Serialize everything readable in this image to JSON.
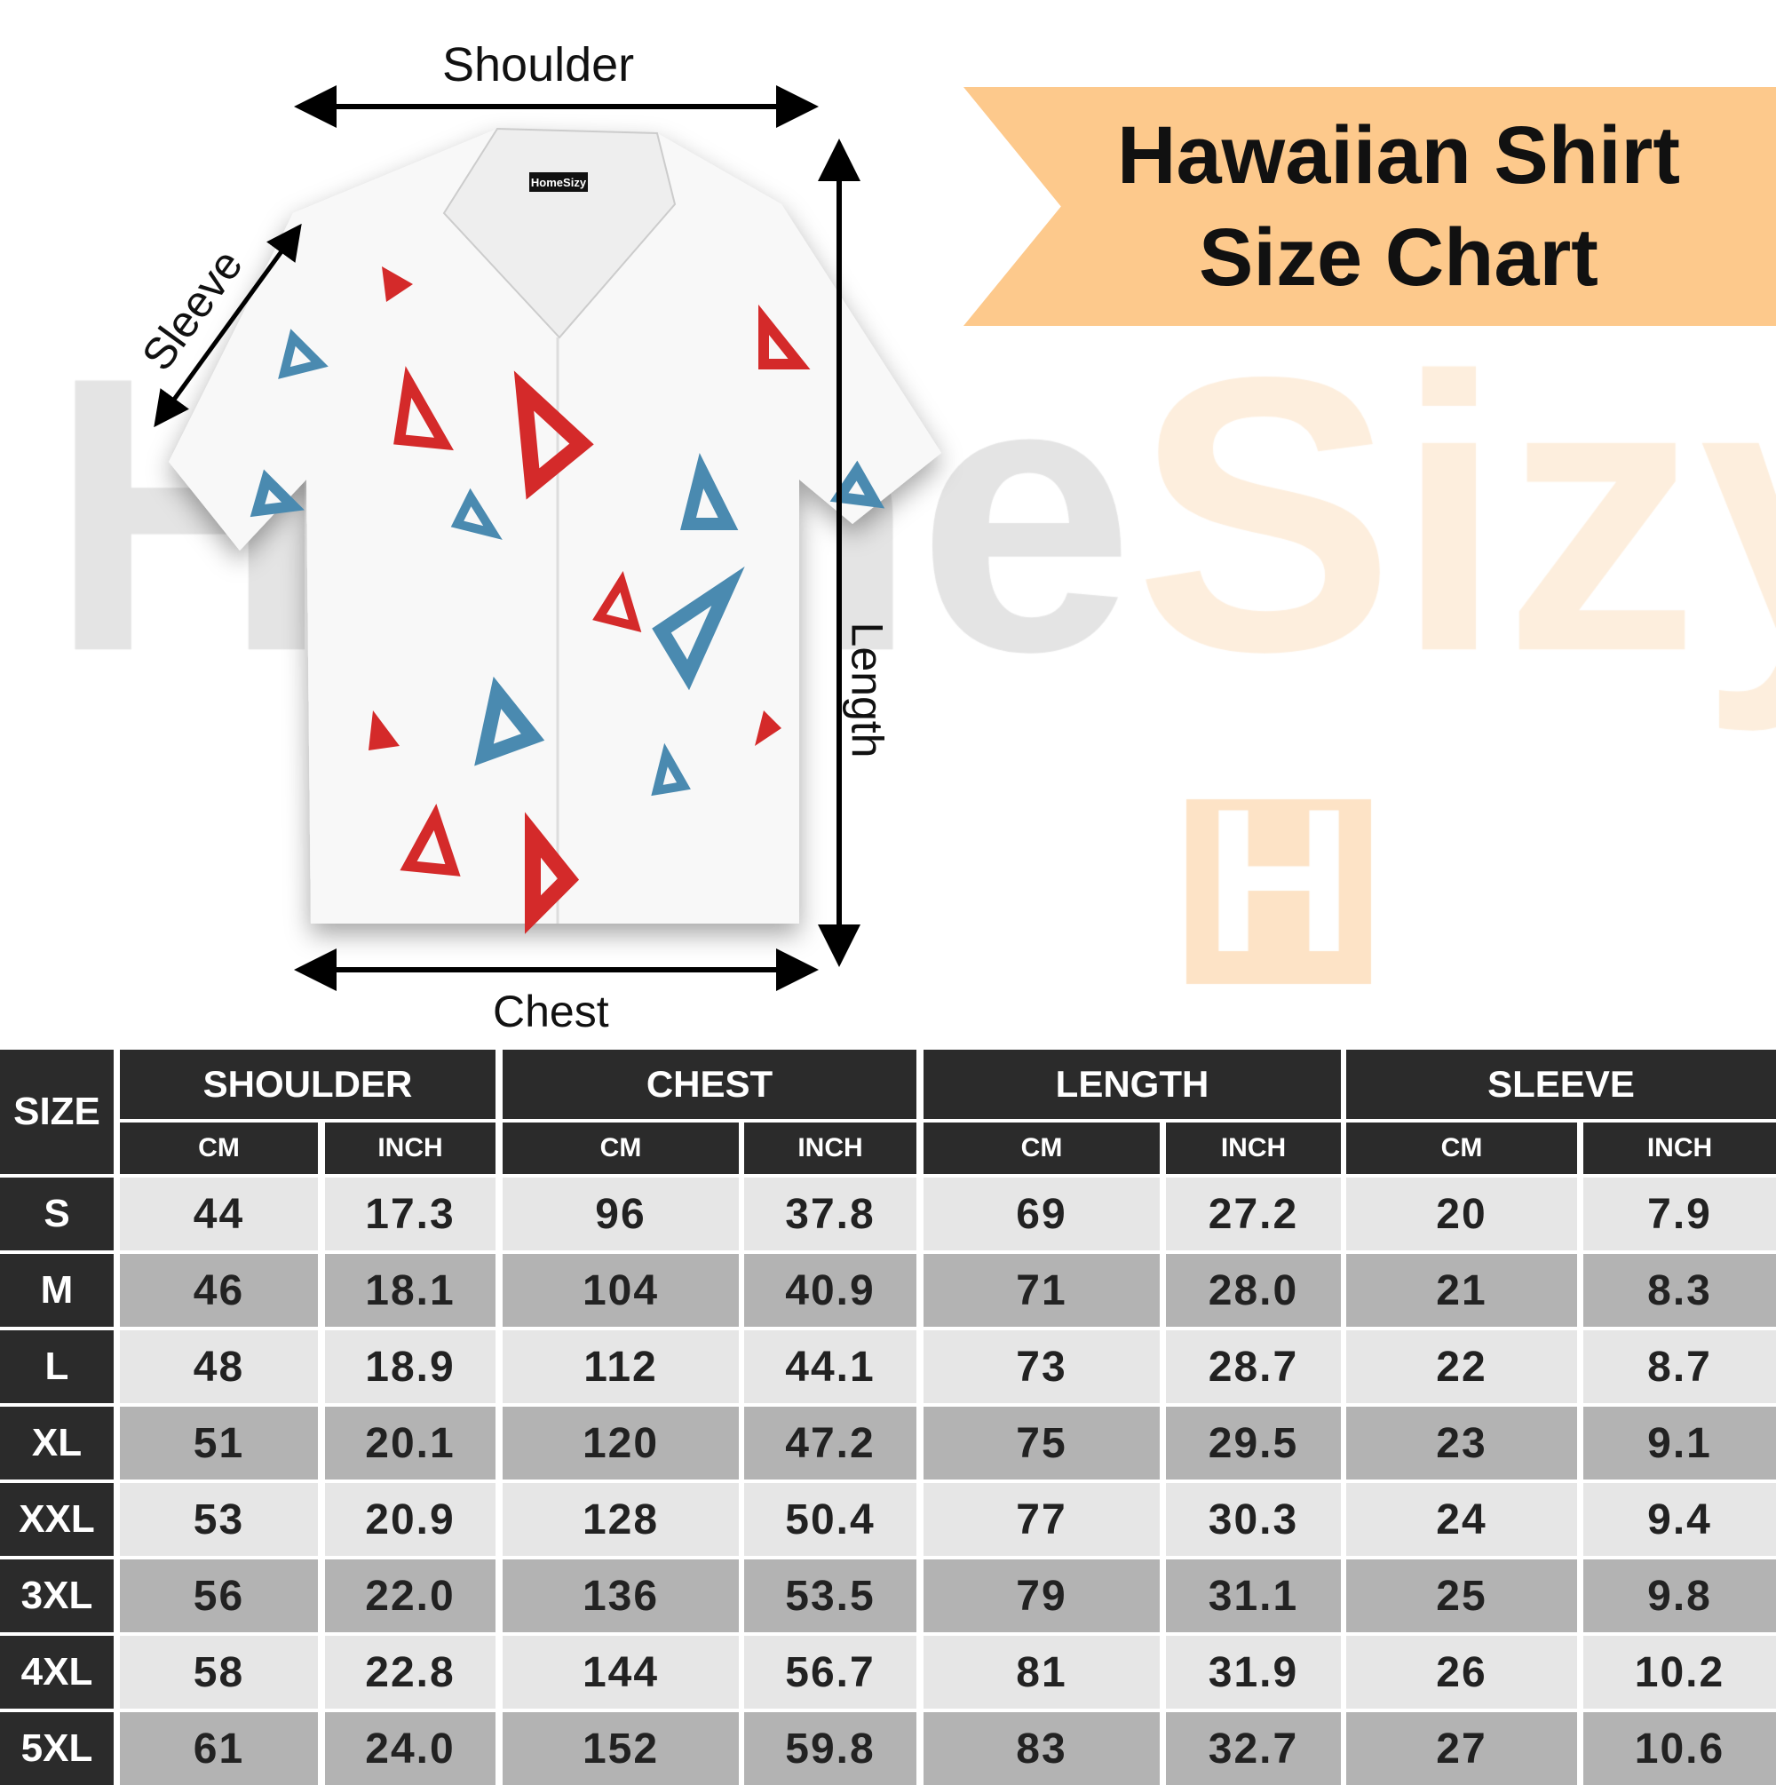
{
  "watermark": {
    "part1": "Home",
    "part2": "Sizy",
    "logo_letter": "H"
  },
  "title": {
    "line1": "Hawaiian Shirt",
    "line2": "Size Chart"
  },
  "shirt": {
    "tag": "HomeSizy"
  },
  "measure_labels": {
    "shoulder": "Shoulder",
    "chest": "Chest",
    "length": "Length",
    "sleeve": "Sleeve"
  },
  "colors": {
    "banner": "#fdc98c",
    "header": "#2b2b2b",
    "row_light": "#e6e6e6",
    "row_dark": "#b3b3b3",
    "triangle_red": "#d42a2a",
    "triangle_blue": "#4a8ab0"
  },
  "table": {
    "size_header": "SIZE",
    "groups": [
      "SHOULDER",
      "CHEST",
      "LENGTH",
      "SLEEVE"
    ],
    "units": [
      "CM",
      "INCH",
      "CM",
      "INCH",
      "CM",
      "INCH",
      "CM",
      "INCH"
    ],
    "rows": [
      {
        "size": "S",
        "values": [
          "44",
          "17.3",
          "96",
          "37.8",
          "69",
          "27.2",
          "20",
          "7.9"
        ]
      },
      {
        "size": "M",
        "values": [
          "46",
          "18.1",
          "104",
          "40.9",
          "71",
          "28.0",
          "21",
          "8.3"
        ]
      },
      {
        "size": "L",
        "values": [
          "48",
          "18.9",
          "112",
          "44.1",
          "73",
          "28.7",
          "22",
          "8.7"
        ]
      },
      {
        "size": "XL",
        "values": [
          "51",
          "20.1",
          "120",
          "47.2",
          "75",
          "29.5",
          "23",
          "9.1"
        ]
      },
      {
        "size": "XXL",
        "values": [
          "53",
          "20.9",
          "128",
          "50.4",
          "77",
          "30.3",
          "24",
          "9.4"
        ]
      },
      {
        "size": "3XL",
        "values": [
          "56",
          "22.0",
          "136",
          "53.5",
          "79",
          "31.1",
          "25",
          "9.8"
        ]
      },
      {
        "size": "4XL",
        "values": [
          "58",
          "22.8",
          "144",
          "56.7",
          "81",
          "31.9",
          "26",
          "10.2"
        ]
      },
      {
        "size": "5XL",
        "values": [
          "61",
          "24.0",
          "152",
          "59.8",
          "83",
          "32.7",
          "27",
          "10.6"
        ]
      }
    ]
  }
}
